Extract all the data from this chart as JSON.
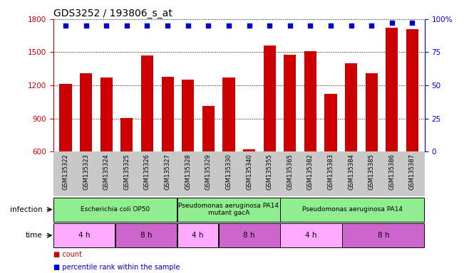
{
  "title": "GDS3252 / 193806_s_at",
  "samples": [
    "GSM135322",
    "GSM135323",
    "GSM135324",
    "GSM135325",
    "GSM135326",
    "GSM135327",
    "GSM135328",
    "GSM135329",
    "GSM135330",
    "GSM135340",
    "GSM135355",
    "GSM135365",
    "GSM135382",
    "GSM135383",
    "GSM135384",
    "GSM135385",
    "GSM135386",
    "GSM135387"
  ],
  "counts": [
    1210,
    1310,
    1270,
    905,
    1470,
    1280,
    1250,
    1010,
    1270,
    620,
    1560,
    1475,
    1510,
    1120,
    1400,
    1310,
    1720,
    1710
  ],
  "percentile_ranks": [
    95,
    95,
    95,
    95,
    95,
    95,
    95,
    95,
    95,
    95,
    95,
    95,
    95,
    95,
    95,
    95,
    97,
    97
  ],
  "ylim_left": [
    600,
    1800
  ],
  "ylim_right": [
    0,
    100
  ],
  "yticks_left": [
    600,
    900,
    1200,
    1500,
    1800
  ],
  "yticks_right": [
    0,
    25,
    50,
    75,
    100
  ],
  "bar_color": "#cc0000",
  "dot_color": "#0000cc",
  "bg_color": "#ffffff",
  "label_area_color": "#c8c8c8",
  "infection_groups": [
    {
      "label": "Escherichia coli OP50",
      "start": 0,
      "end": 6,
      "color": "#90ee90"
    },
    {
      "label": "Pseudomonas aeruginosa PA14\nmutant gacA",
      "start": 6,
      "end": 11,
      "color": "#90ee90"
    },
    {
      "label": "Pseudomonas aeruginosa PA14",
      "start": 11,
      "end": 18,
      "color": "#90ee90"
    }
  ],
  "time_groups": [
    {
      "label": "4 h",
      "start": 0,
      "end": 3,
      "color": "#ffaaff"
    },
    {
      "label": "8 h",
      "start": 3,
      "end": 6,
      "color": "#cc66cc"
    },
    {
      "label": "4 h",
      "start": 6,
      "end": 8,
      "color": "#ffaaff"
    },
    {
      "label": "8 h",
      "start": 8,
      "end": 11,
      "color": "#cc66cc"
    },
    {
      "label": "4 h",
      "start": 11,
      "end": 14,
      "color": "#ffaaff"
    },
    {
      "label": "8 h",
      "start": 14,
      "end": 18,
      "color": "#cc66cc"
    }
  ],
  "left_axis_color": "#cc0000",
  "right_axis_color": "#0000cc",
  "legend_count_color": "#cc0000",
  "legend_dot_color": "#0000cc"
}
